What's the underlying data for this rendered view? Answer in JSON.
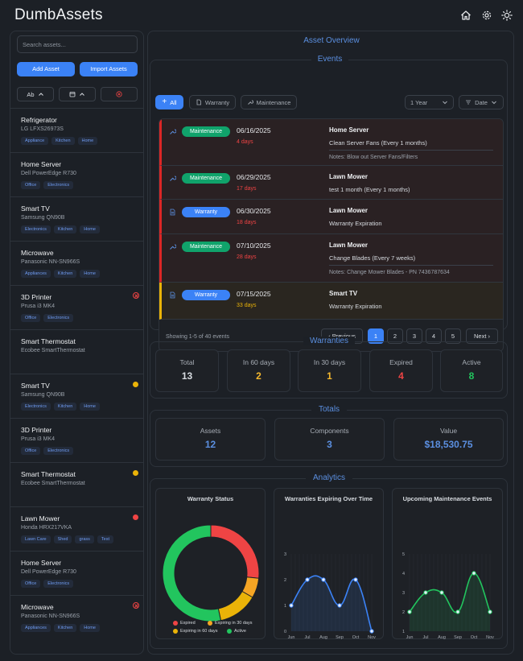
{
  "header": {
    "title": "DumbAssets"
  },
  "sidebar": {
    "search_placeholder": "Search assets...",
    "add_label": "Add Asset",
    "import_label": "Import Assets",
    "sort_alpha_label": "Ab",
    "assets": [
      {
        "name": "Refrigerator",
        "model": "LG LFXS26973S",
        "tags": [
          "Appliance",
          "Kitchen",
          "Home"
        ],
        "status": "none"
      },
      {
        "name": "Home Server",
        "model": "Dell PowerEdge R730",
        "tags": [
          "Office",
          "Electronics"
        ],
        "status": "none"
      },
      {
        "name": "Smart TV",
        "model": "Samsung QN90B",
        "tags": [
          "Electronics",
          "Kitchen",
          "Home"
        ],
        "status": "none"
      },
      {
        "name": "Microwave",
        "model": "Panasonic NN-SN966S",
        "tags": [
          "Appliances",
          "Kitchen",
          "Home"
        ],
        "status": "none"
      },
      {
        "name": "3D Printer",
        "model": "Prusa i3 MK4",
        "tags": [
          "Office",
          "Electronics"
        ],
        "status": "expired-outline"
      },
      {
        "name": "Smart Thermostat",
        "model": "Ecobee SmartThermostat",
        "tags": [],
        "status": "none"
      },
      {
        "name": "Smart TV",
        "model": "Samsung QN90B",
        "tags": [
          "Electronics",
          "Kitchen",
          "Home"
        ],
        "status": "yellow"
      },
      {
        "name": "3D Printer",
        "model": "Prusa i3 MK4",
        "tags": [
          "Office",
          "Electronics"
        ],
        "status": "none"
      },
      {
        "name": "Smart Thermostat",
        "model": "Ecobee SmartThermostat",
        "tags": [],
        "status": "yellow"
      },
      {
        "name": "Lawn Mower",
        "model": "Honda HRX217VKA",
        "tags": [
          "Lawn Care",
          "Shed",
          "grass",
          "Test"
        ],
        "status": "red"
      },
      {
        "name": "Home Server",
        "model": "Dell PowerEdge R730",
        "tags": [
          "Office",
          "Electronics"
        ],
        "status": "none"
      },
      {
        "name": "Microwave",
        "model": "Panasonic NN-SN966S",
        "tags": [
          "Appliances",
          "Kitchen",
          "Home"
        ],
        "status": "expired-outline"
      }
    ]
  },
  "overview": {
    "title": "Asset Overview",
    "events_title": "Events",
    "filters": {
      "all": "All",
      "warranty": "Warranty",
      "maintenance": "Maintenance",
      "period": "1 Year",
      "sort": "Date"
    },
    "events": [
      {
        "type": "Maintenance",
        "date": "06/16/2025",
        "days": "4 days",
        "title": "Home Server",
        "desc": "Clean Server Fans (Every 1 months)",
        "notes": "Notes: Blow out Server Fans/Filters",
        "urgency": "red"
      },
      {
        "type": "Maintenance",
        "date": "06/29/2025",
        "days": "17 days",
        "title": "Lawn Mower",
        "desc": "test 1 month (Every 1 months)",
        "notes": "",
        "urgency": "red"
      },
      {
        "type": "Warranty",
        "date": "06/30/2025",
        "days": "18 days",
        "title": "Lawn Mower",
        "desc": "Warranty Expiration",
        "notes": "",
        "urgency": "red"
      },
      {
        "type": "Maintenance",
        "date": "07/10/2025",
        "days": "28 days",
        "title": "Lawn Mower",
        "desc": "Change Blades (Every 7 weeks)",
        "notes": "Notes: Change Mower Blades - PN 7436787634",
        "urgency": "red"
      },
      {
        "type": "Warranty",
        "date": "07/15/2025",
        "days": "33 days",
        "title": "Smart TV",
        "desc": "Warranty Expiration",
        "notes": "",
        "urgency": "yellow"
      }
    ],
    "showing": "Showing 1-5 of 40 events",
    "pagination": {
      "prev": "Previous",
      "pages": [
        "1",
        "2",
        "3",
        "4",
        "5"
      ],
      "next": "Next",
      "current": "1"
    }
  },
  "warranties": {
    "title": "Warranties",
    "cards": [
      {
        "label": "Total",
        "value": "13",
        "color": "#d7dbe0"
      },
      {
        "label": "In 60 days",
        "value": "2",
        "color": "#f5b82e"
      },
      {
        "label": "In 30 days",
        "value": "1",
        "color": "#f5b82e"
      },
      {
        "label": "Expired",
        "value": "4",
        "color": "#ef4444"
      },
      {
        "label": "Active",
        "value": "8",
        "color": "#22c55e"
      }
    ]
  },
  "totals": {
    "title": "Totals",
    "cards": [
      {
        "label": "Assets",
        "value": "12",
        "color": "#5b8fe0"
      },
      {
        "label": "Components",
        "value": "3",
        "color": "#5b8fe0"
      },
      {
        "label": "Value",
        "value": "$18,530.75",
        "color": "#5b8fe0"
      }
    ]
  },
  "analytics": {
    "title": "Analytics",
    "colors": {
      "expired": "#ef4444",
      "expiring30": "#f5a524",
      "expiring60": "#eab308",
      "active": "#22c55e",
      "line_blue": "#3b82f6",
      "line_green": "#22c55e"
    }
  },
  "chart_data": [
    {
      "type": "pie",
      "title": "Warranty Status",
      "categories": [
        "Expired",
        "Expiring in 30 days",
        "Expiring in 60 days",
        "Active"
      ],
      "values": [
        4,
        1,
        2,
        8
      ]
    },
    {
      "type": "line",
      "title": "Warranties Expiring Over Time",
      "categories": [
        "Jun",
        "Jul",
        "Aug",
        "Sep",
        "Oct",
        "Nov"
      ],
      "values": [
        1,
        2,
        2,
        1,
        2,
        0
      ],
      "yticks": [
        "0",
        "1",
        "2",
        "3"
      ],
      "ylim": [
        0,
        3
      ]
    },
    {
      "type": "line",
      "title": "Upcoming Maintenance Events",
      "categories": [
        "Jun",
        "Jul",
        "Aug",
        "Sep",
        "Oct",
        "Nov"
      ],
      "values": [
        2,
        3,
        3,
        2,
        4,
        2
      ],
      "yticks": [
        "1",
        "2",
        "3",
        "4",
        "5"
      ],
      "ylim": [
        1,
        5
      ]
    }
  ]
}
